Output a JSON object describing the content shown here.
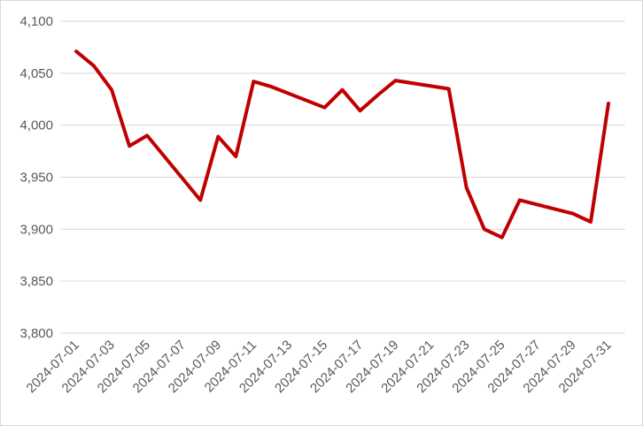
{
  "chart_data": {
    "type": "line",
    "x": [
      "2024-07-01",
      "2024-07-02",
      "2024-07-03",
      "2024-07-04",
      "2024-07-05",
      "2024-07-08",
      "2024-07-09",
      "2024-07-10",
      "2024-07-11",
      "2024-07-12",
      "2024-07-15",
      "2024-07-16",
      "2024-07-17",
      "2024-07-18",
      "2024-07-19",
      "2024-07-22",
      "2024-07-23",
      "2024-07-24",
      "2024-07-25",
      "2024-07-26",
      "2024-07-29",
      "2024-07-30",
      "2024-07-31"
    ],
    "values": [
      4071,
      4057,
      4034,
      3980,
      3990,
      3928,
      3989,
      3970,
      4042,
      4037,
      4017,
      4034,
      4014,
      4029,
      4043,
      4035,
      3940,
      3900,
      3892,
      3928,
      3915,
      3907,
      4021
    ],
    "color": "#c00000",
    "ylim": [
      3800,
      4100
    ],
    "yticks": [
      {
        "value": 3800,
        "label": "3,800"
      },
      {
        "value": 3850,
        "label": "3,850"
      },
      {
        "value": 3900,
        "label": "3,900"
      },
      {
        "value": 3950,
        "label": "3,950"
      },
      {
        "value": 4000,
        "label": "4,000"
      },
      {
        "value": 4050,
        "label": "4,050"
      },
      {
        "value": 4100,
        "label": "4,100"
      }
    ],
    "xticks": [
      "2024-07-01",
      "2024-07-03",
      "2024-07-05",
      "2024-07-07",
      "2024-07-09",
      "2024-07-11",
      "2024-07-13",
      "2024-07-15",
      "2024-07-17",
      "2024-07-19",
      "2024-07-21",
      "2024-07-23",
      "2024-07-25",
      "2024-07-27",
      "2024-07-29",
      "2024-07-31"
    ],
    "grid": true
  }
}
